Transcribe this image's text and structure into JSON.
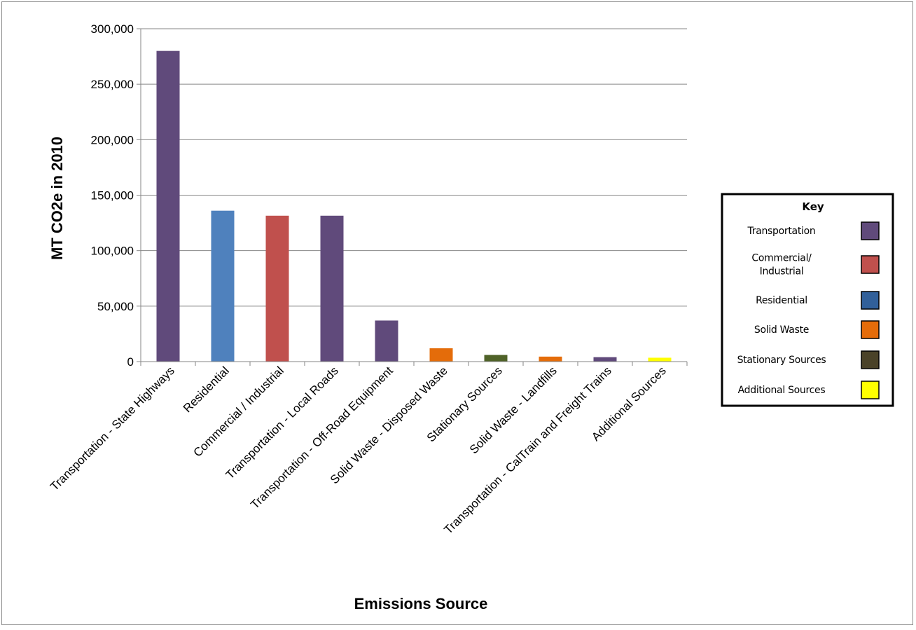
{
  "chart_data": {
    "type": "bar",
    "title": "",
    "xlabel": "Emissions Source",
    "ylabel": "MT CO2e in 2010",
    "ylim": [
      0,
      300000
    ],
    "yticks": [
      0,
      50000,
      100000,
      150000,
      200000,
      250000,
      300000
    ],
    "ytick_labels": [
      "0",
      "50,000",
      "100,000",
      "150,000",
      "200,000",
      "250,000",
      "300,000"
    ],
    "grid": true,
    "categories": [
      "Transportation - State Highways",
      "Residential",
      "Commercial / Industrial",
      "Transportation - Local Roads",
      "Transportation - Off-Road Equipment",
      "Solid Waste - Disposed Waste",
      "Stationary Sources",
      "Solid Waste - Landfills",
      "Transportation - CalTrain and Freight Trains",
      "Additional Sources"
    ],
    "values": [
      280000,
      136000,
      131500,
      131500,
      37000,
      12000,
      6000,
      4500,
      4000,
      3500
    ],
    "bar_groups": [
      "Transportation",
      "Residential",
      "Commercial/ Industrial",
      "Transportation",
      "Transportation",
      "Solid Waste",
      "Stationary Sources",
      "Solid Waste",
      "Transportation",
      "Additional Sources"
    ],
    "bar_colors": [
      "#604a7b",
      "#4f81bd",
      "#c0504d",
      "#604a7b",
      "#604a7b",
      "#e46c0a",
      "#4f6228",
      "#e46c0a",
      "#604a7b",
      "#ffff00"
    ],
    "legend": {
      "title": "Key",
      "placement": "right",
      "items": [
        {
          "label_lines": [
            "Transportation"
          ],
          "color": "#604a7b"
        },
        {
          "label_lines": [
            "Commercial/",
            "Industrial"
          ],
          "color": "#c0504d"
        },
        {
          "label_lines": [
            "Residential"
          ],
          "color": "#31609a"
        },
        {
          "label_lines": [
            "Solid Waste"
          ],
          "color": "#e46c0a"
        },
        {
          "label_lines": [
            "Stationary Sources"
          ],
          "color": "#4a4228"
        },
        {
          "label_lines": [
            "Additional Sources"
          ],
          "color": "#ffff00"
        }
      ]
    }
  }
}
